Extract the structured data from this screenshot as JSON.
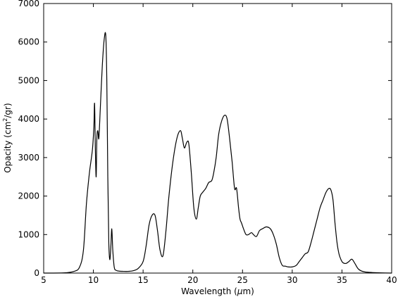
{
  "chart_data": {
    "type": "line",
    "title": "",
    "xlabel": "Wavelength (μm)",
    "ylabel": "Opacity (cm²/gr)",
    "ylabel_parts": {
      "pre": "Opacity (cm",
      "sup": "2",
      "post": "/gr)"
    },
    "xlabel_parts": {
      "pre": "Wavelength (",
      "mu": "μ",
      "post": "m)"
    },
    "xlim": [
      5,
      40
    ],
    "ylim": [
      0,
      7000
    ],
    "xticks": [
      5,
      10,
      15,
      20,
      25,
      30,
      35,
      40
    ],
    "yticks": [
      0,
      1000,
      2000,
      3000,
      4000,
      5000,
      6000,
      7000
    ],
    "grid": false,
    "series": [
      {
        "color": "#000000",
        "x": [
          5.0,
          7.0,
          8.0,
          8.6,
          9.0,
          9.3,
          9.6,
          9.9,
          10.05,
          10.12,
          10.2,
          10.28,
          10.35,
          10.45,
          10.55,
          10.7,
          10.9,
          11.1,
          11.25,
          11.35,
          11.45,
          11.55,
          11.65,
          11.75,
          11.85,
          11.95,
          12.1,
          12.3,
          12.6,
          13.0,
          13.5,
          14.0,
          14.5,
          15.0,
          15.3,
          15.6,
          15.9,
          16.2,
          16.45,
          16.7,
          17.0,
          17.3,
          17.6,
          18.0,
          18.4,
          18.75,
          18.95,
          19.15,
          19.4,
          19.6,
          19.85,
          20.1,
          20.35,
          20.55,
          20.75,
          21.0,
          21.3,
          21.6,
          21.9,
          22.1,
          22.35,
          22.6,
          22.9,
          23.2,
          23.45,
          23.7,
          23.95,
          24.2,
          24.4,
          24.6,
          24.75,
          24.9,
          25.1,
          25.35,
          25.6,
          25.9,
          26.1,
          26.4,
          26.7,
          27.0,
          27.4,
          27.8,
          28.1,
          28.4,
          28.7,
          29.0,
          29.3,
          29.6,
          30.0,
          30.4,
          30.7,
          31.0,
          31.3,
          31.6,
          31.9,
          32.2,
          32.5,
          32.8,
          33.1,
          33.4,
          33.7,
          33.9,
          34.1,
          34.3,
          34.5,
          34.7,
          34.9,
          35.1,
          35.4,
          35.7,
          36.0,
          36.3,
          36.6,
          36.9,
          37.3,
          38.0,
          39.0,
          40.0
        ],
        "values": [
          0,
          5,
          40,
          150,
          600,
          1800,
          2600,
          3200,
          3800,
          4400,
          3200,
          2500,
          3500,
          3700,
          3500,
          4300,
          5400,
          6100,
          6150,
          5000,
          2500,
          800,
          350,
          650,
          1150,
          600,
          150,
          70,
          50,
          45,
          45,
          60,
          120,
          300,
          700,
          1250,
          1500,
          1500,
          1100,
          600,
          450,
          1100,
          2000,
          2900,
          3500,
          3700,
          3500,
          3250,
          3400,
          3350,
          2600,
          1700,
          1400,
          1700,
          2000,
          2100,
          2200,
          2350,
          2400,
          2600,
          3000,
          3600,
          3950,
          4100,
          4000,
          3500,
          2900,
          2200,
          2200,
          1700,
          1400,
          1300,
          1150,
          1000,
          1000,
          1050,
          1000,
          950,
          1100,
          1150,
          1200,
          1150,
          1000,
          750,
          400,
          200,
          180,
          160,
          160,
          200,
          300,
          400,
          500,
          550,
          800,
          1100,
          1400,
          1700,
          1900,
          2100,
          2200,
          2150,
          1900,
          1300,
          800,
          500,
          350,
          270,
          250,
          300,
          360,
          250,
          120,
          60,
          30,
          15,
          5,
          0
        ]
      }
    ]
  }
}
